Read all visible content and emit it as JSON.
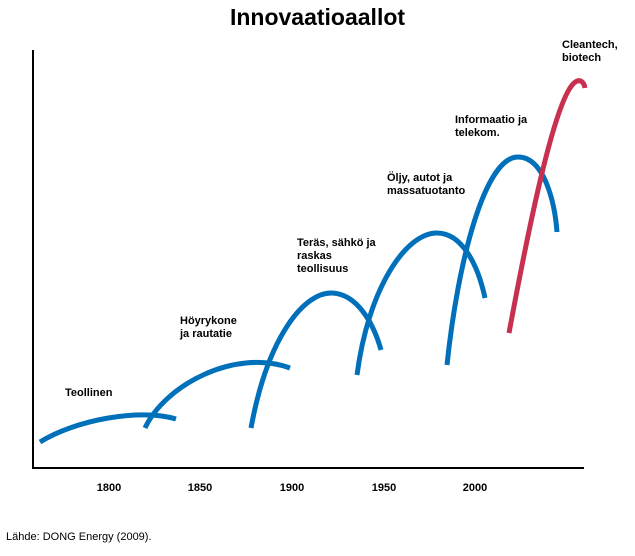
{
  "title": "Innovaatioaallot",
  "x_ticks": [
    "1800",
    "1850",
    "1900",
    "1950",
    "2000"
  ],
  "waves": [
    {
      "label": "Teollinen",
      "color": "#0070bb"
    },
    {
      "label": "Höyrykone\nja rautatie",
      "color": "#0070bb"
    },
    {
      "label": "Teräs, sähkö ja\nraskas\nteollisuus",
      "color": "#0070bb"
    },
    {
      "label": "Öljy, autot ja\nmassatuotanto",
      "color": "#0070bb"
    },
    {
      "label": "Informaatio ja\ntelekom.",
      "color": "#0070bb"
    },
    {
      "label": "Cleantech,\nbiotech",
      "color": "#c8304f"
    }
  ],
  "source": "Lähde: DONG Energy (2009)."
}
